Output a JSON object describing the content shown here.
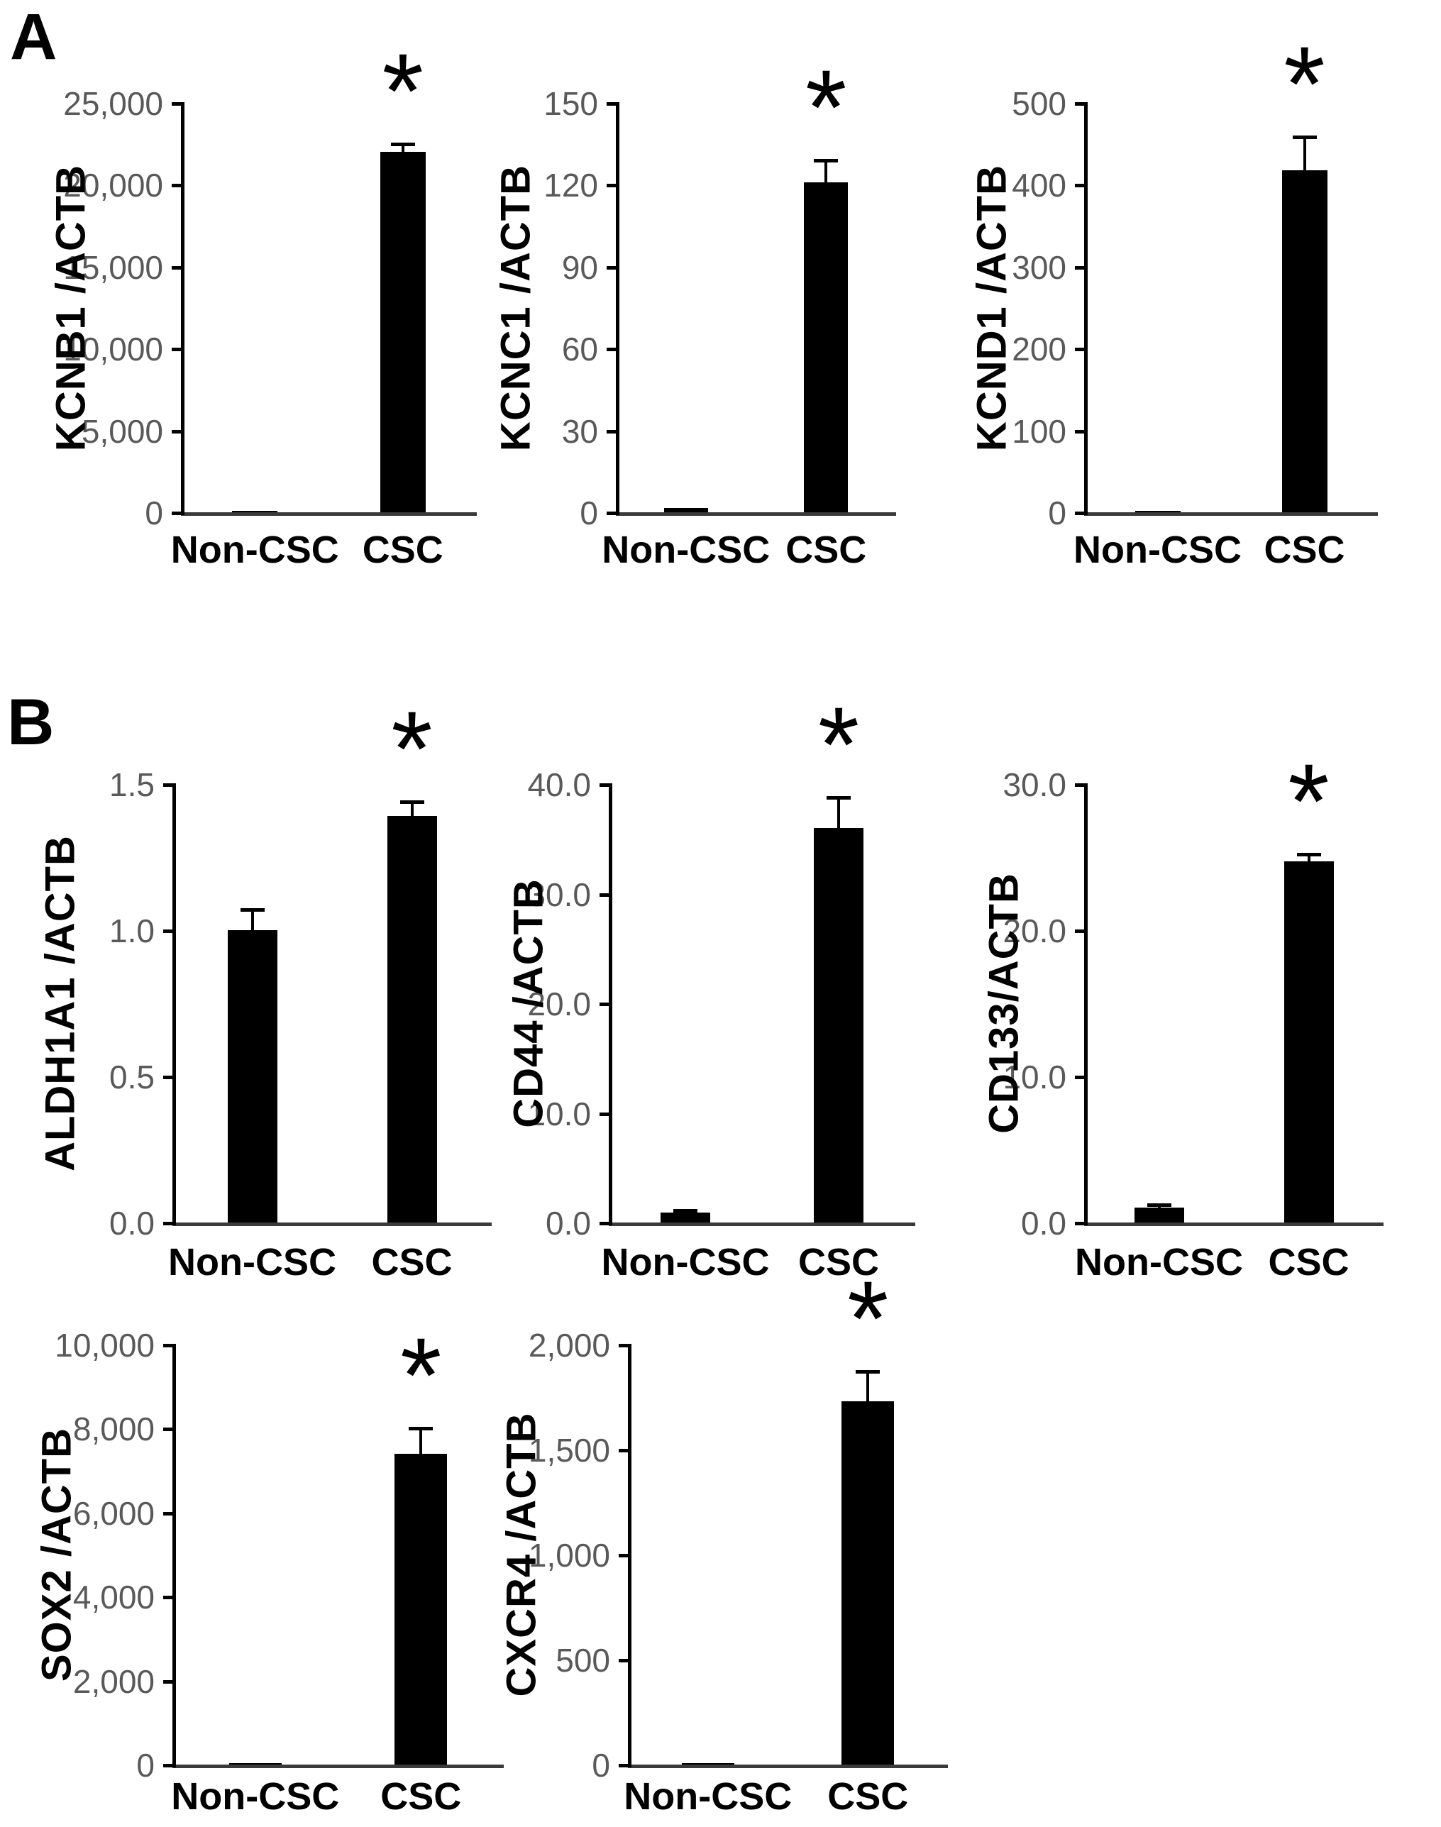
{
  "figure": {
    "panel_a_label": "A",
    "panel_b_label": "B",
    "significance_marker": "*",
    "categories": [
      "Non-CSC",
      "CSC"
    ],
    "colors": {
      "bar": "#000000",
      "axis": "#000000",
      "baseline": "#3a3a3a",
      "tick_label": "#595959",
      "text": "#000000",
      "background": "#ffffff"
    }
  },
  "chart_data": [
    {
      "id": "kcnb1",
      "panel": "A",
      "type": "bar",
      "ylabel": "KCNB1 /ACTB",
      "categories": [
        "Non-CSC",
        "CSC"
      ],
      "values": [
        30,
        22000
      ],
      "errors": [
        0,
        500
      ],
      "ylim": [
        0,
        25000
      ],
      "yticks": [
        0,
        5000,
        10000,
        15000,
        20000,
        25000
      ],
      "ytick_labels": [
        "0",
        "5,000",
        "10,000",
        "15,000",
        "20,000",
        "25,000"
      ],
      "significant_category": "CSC",
      "sig_label": "*",
      "grid": "off",
      "legend": "none"
    },
    {
      "id": "kcnc1",
      "panel": "A",
      "type": "bar",
      "ylabel": "KCNC1 /ACTB",
      "categories": [
        "Non-CSC",
        "CSC"
      ],
      "values": [
        1.5,
        121
      ],
      "errors": [
        0,
        8
      ],
      "ylim": [
        0,
        150
      ],
      "yticks": [
        0,
        30,
        60,
        90,
        120,
        150
      ],
      "ytick_labels": [
        "0",
        "30",
        "60",
        "90",
        "120",
        "150"
      ],
      "significant_category": "CSC",
      "sig_label": "*",
      "grid": "off",
      "legend": "none"
    },
    {
      "id": "kcnd1",
      "panel": "A",
      "type": "bar",
      "ylabel": "KCND1 /ACTB",
      "categories": [
        "Non-CSC",
        "CSC"
      ],
      "values": [
        1.5,
        418
      ],
      "errors": [
        0,
        40
      ],
      "ylim": [
        0,
        500
      ],
      "yticks": [
        0,
        100,
        200,
        300,
        400,
        500
      ],
      "ytick_labels": [
        "0",
        "100",
        "200",
        "300",
        "400",
        "500"
      ],
      "significant_category": "CSC",
      "sig_label": "*",
      "grid": "off",
      "legend": "none"
    },
    {
      "id": "aldh1a1",
      "panel": "B",
      "type": "bar",
      "ylabel": "ALDH1A1 /ACTB",
      "categories": [
        "Non-CSC",
        "CSC"
      ],
      "values": [
        1.0,
        1.39
      ],
      "errors": [
        0.07,
        0.05
      ],
      "ylim": [
        0,
        1.5
      ],
      "yticks": [
        0,
        0.5,
        1.0,
        1.5
      ],
      "ytick_labels": [
        "0.0",
        "0.5",
        "1.0",
        "1.5"
      ],
      "significant_category": "CSC",
      "sig_label": "*",
      "grid": "off",
      "legend": "none"
    },
    {
      "id": "cd44",
      "panel": "B",
      "type": "bar",
      "ylabel": "CD44 /ACTB",
      "categories": [
        "Non-CSC",
        "CSC"
      ],
      "values": [
        0.9,
        36.0
      ],
      "errors": [
        0.2,
        2.8
      ],
      "ylim": [
        0,
        40
      ],
      "yticks": [
        0,
        10,
        20,
        30,
        40
      ],
      "ytick_labels": [
        "0.0",
        "10.0",
        "20.0",
        "30.0",
        "40.0"
      ],
      "significant_category": "CSC",
      "sig_label": "*",
      "grid": "off",
      "legend": "none"
    },
    {
      "id": "cd133",
      "panel": "B",
      "type": "bar",
      "ylabel": "CD133/ACTB",
      "categories": [
        "Non-CSC",
        "CSC"
      ],
      "values": [
        1.0,
        24.7
      ],
      "errors": [
        0.2,
        0.5
      ],
      "ylim": [
        0,
        30
      ],
      "yticks": [
        0,
        10,
        20,
        30
      ],
      "ytick_labels": [
        "0.0",
        "10.0",
        "20.0",
        "30.0"
      ],
      "significant_category": "CSC",
      "sig_label": "*",
      "grid": "off",
      "legend": "none"
    },
    {
      "id": "sox2",
      "panel": "B",
      "type": "bar",
      "ylabel": "SOX2 /ACTB",
      "categories": [
        "Non-CSC",
        "CSC"
      ],
      "values": [
        25,
        7400
      ],
      "errors": [
        0,
        600
      ],
      "ylim": [
        0,
        10000
      ],
      "yticks": [
        0,
        2000,
        4000,
        6000,
        8000,
        10000
      ],
      "ytick_labels": [
        "0",
        "2,000",
        "4,000",
        "6,000",
        "8,000",
        "10,000"
      ],
      "significant_category": "CSC",
      "sig_label": "*",
      "grid": "off",
      "legend": "none"
    },
    {
      "id": "cxcr4",
      "panel": "B",
      "type": "bar",
      "ylabel": "CXCR4 /ACTB",
      "categories": [
        "Non-CSC",
        "CSC"
      ],
      "values": [
        8,
        1730
      ],
      "errors": [
        0,
        140
      ],
      "ylim": [
        0,
        2000
      ],
      "yticks": [
        0,
        500,
        1000,
        1500,
        2000
      ],
      "ytick_labels": [
        "0",
        "500",
        "1,000",
        "1,500",
        "2,000"
      ],
      "significant_category": "CSC",
      "sig_label": "*",
      "grid": "off",
      "legend": "none"
    }
  ]
}
